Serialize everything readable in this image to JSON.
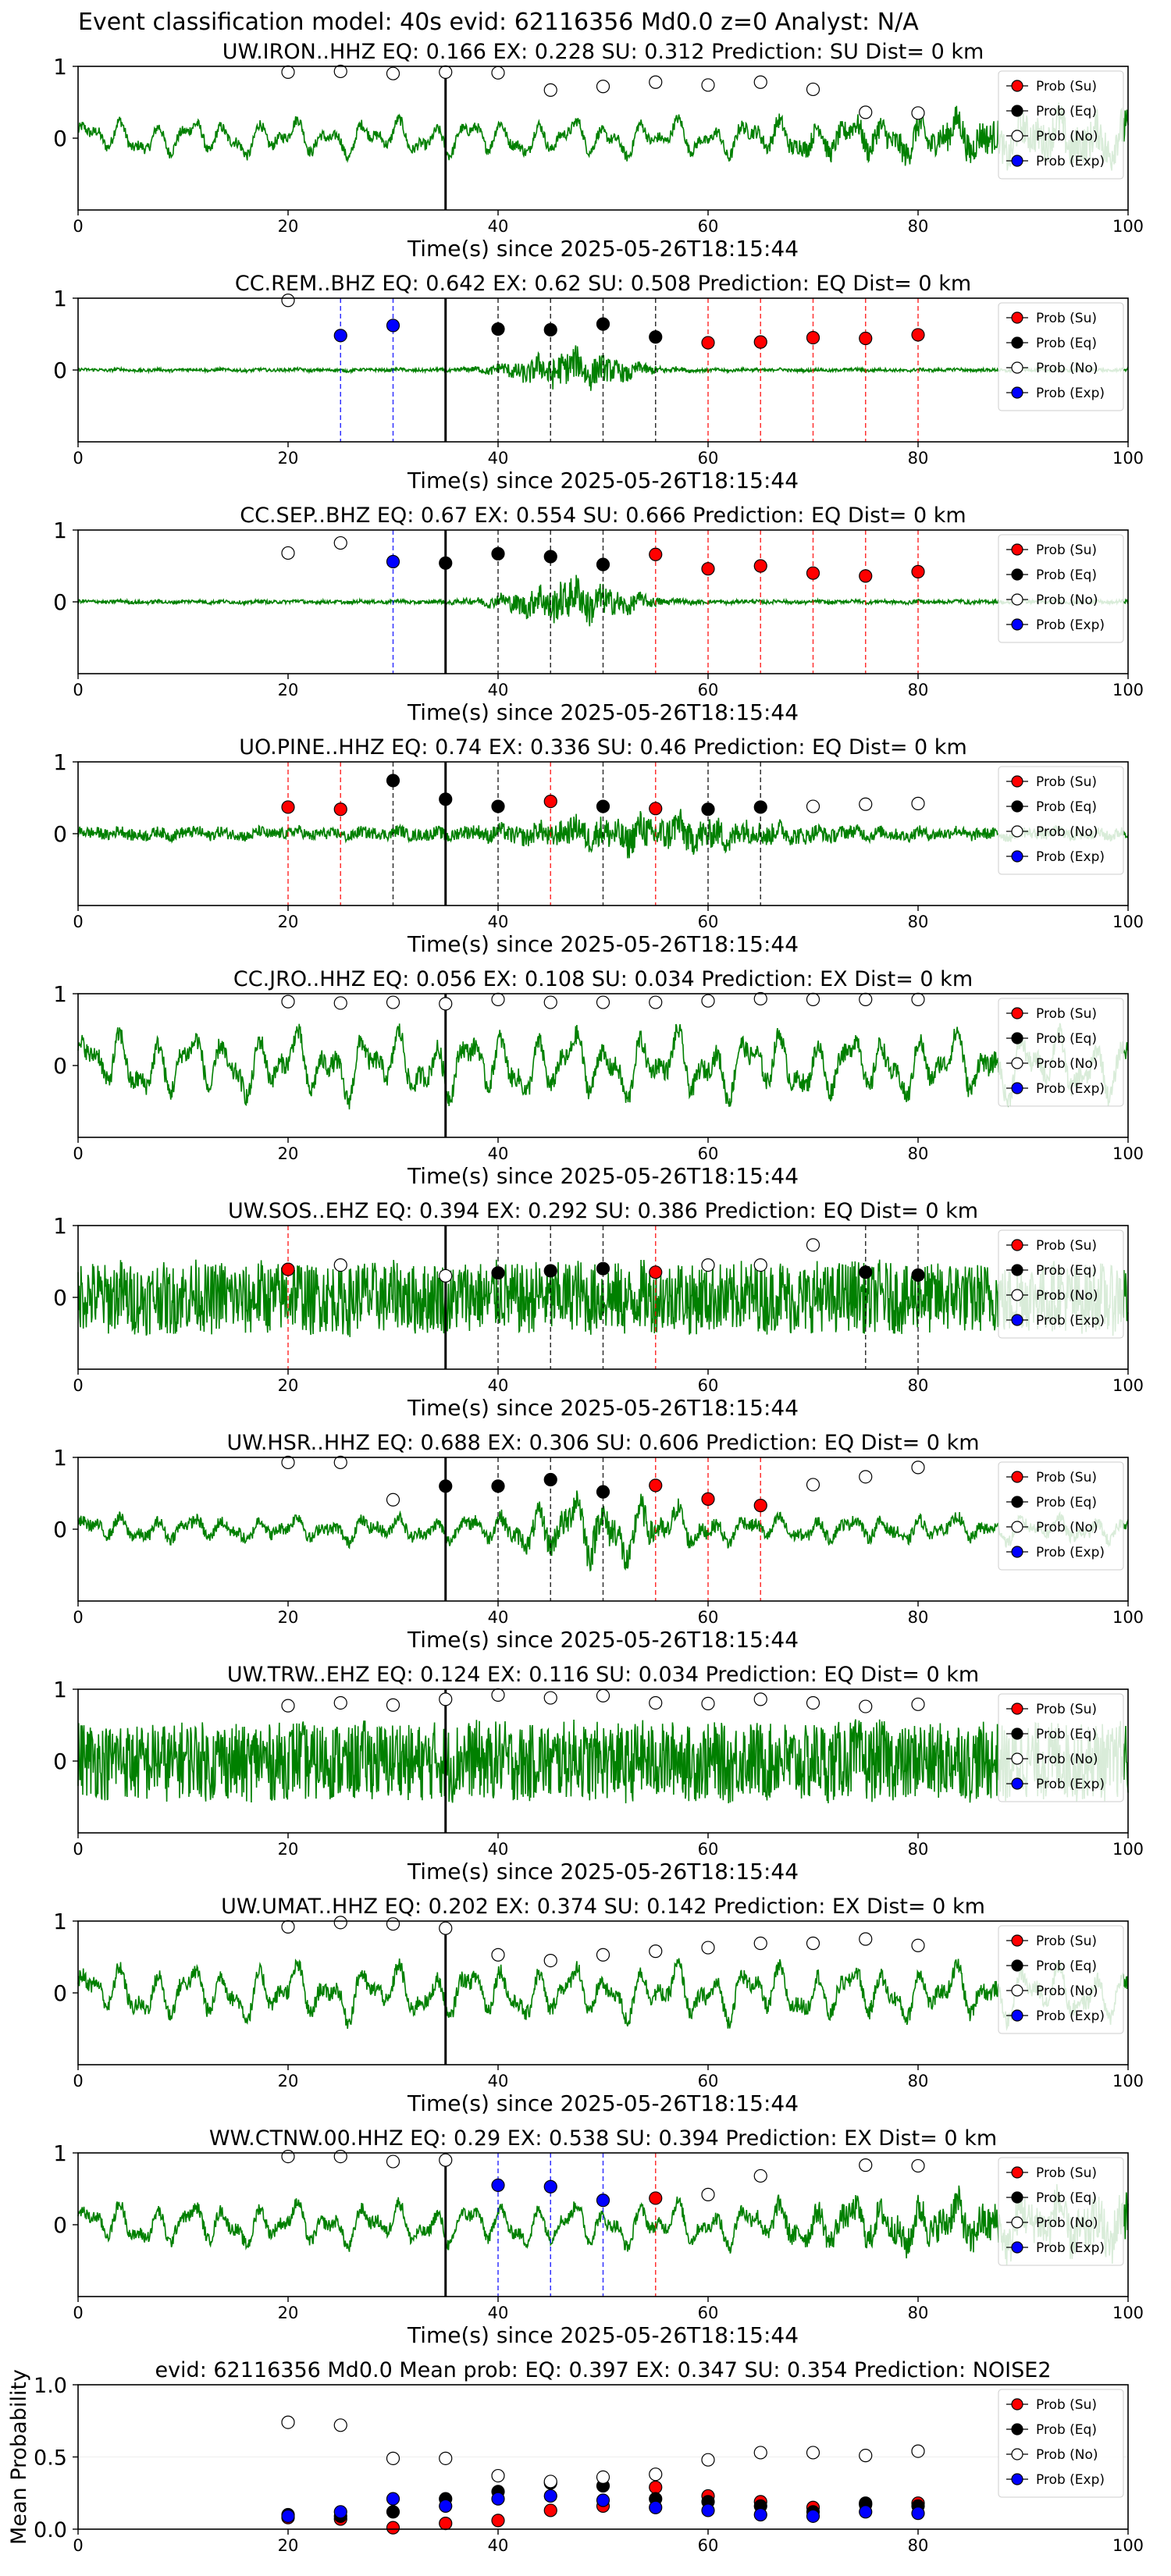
{
  "suptitle": "Event classification model: 40s evid: 62116356 Md0.0 z=0 Analyst: N/A",
  "colors": {
    "waveform": "#008000",
    "prob_su": "#ff0000",
    "prob_eq": "#000000",
    "prob_no": "#ffffff",
    "prob_exp": "#0000ff",
    "origin_line": "#000000"
  },
  "legend_labels": [
    "Prob (Su)",
    "Prob (Eq)",
    "Prob (No)",
    "Prob (Exp)"
  ],
  "chart_data": [
    {
      "type": "line",
      "title": "UW.IRON..HHZ   EQ: 0.166  EX: 0.228  SU: 0.312   Prediction: SU    Dist= 0 km",
      "xlabel": "Time(s) since 2025-05-26T18:15:44",
      "xlim": [
        0,
        100
      ],
      "ylim": [
        -1,
        1
      ],
      "xticks": [
        0,
        20,
        40,
        60,
        80,
        100
      ],
      "yticks": [
        0,
        1
      ],
      "origin_time": 35,
      "legend_position": "top-right",
      "waveform_amplitude": 0.38,
      "waveform_style": "lowfreq-rising",
      "points": [
        {
          "x": 20,
          "y": 0.92,
          "cls": "no"
        },
        {
          "x": 25,
          "y": 0.93,
          "cls": "no"
        },
        {
          "x": 30,
          "y": 0.9,
          "cls": "no"
        },
        {
          "x": 35,
          "y": 0.92,
          "cls": "no"
        },
        {
          "x": 40,
          "y": 0.91,
          "cls": "no"
        },
        {
          "x": 45,
          "y": 0.67,
          "cls": "no"
        },
        {
          "x": 50,
          "y": 0.72,
          "cls": "no"
        },
        {
          "x": 55,
          "y": 0.78,
          "cls": "no"
        },
        {
          "x": 60,
          "y": 0.74,
          "cls": "no"
        },
        {
          "x": 65,
          "y": 0.78,
          "cls": "no"
        },
        {
          "x": 70,
          "y": 0.68,
          "cls": "no"
        },
        {
          "x": 75,
          "y": 0.36,
          "cls": "no"
        },
        {
          "x": 80,
          "y": 0.35,
          "cls": "no"
        }
      ]
    },
    {
      "type": "line",
      "title": "CC.REM..BHZ   EQ: 0.642  EX: 0.62  SU: 0.508   Prediction: EQ    Dist= 0 km",
      "xlabel": "Time(s) since 2025-05-26T18:15:44",
      "xlim": [
        0,
        100
      ],
      "ylim": [
        -1,
        1
      ],
      "xticks": [
        0,
        20,
        40,
        60,
        80,
        100
      ],
      "yticks": [
        0,
        1
      ],
      "origin_time": 35,
      "legend_position": "top-right",
      "waveform_amplitude": 0.12,
      "waveform_style": "burst",
      "points": [
        {
          "x": 20,
          "y": 0.97,
          "cls": "no"
        },
        {
          "x": 25,
          "y": 0.48,
          "cls": "exp"
        },
        {
          "x": 30,
          "y": 0.62,
          "cls": "exp"
        },
        {
          "x": 40,
          "y": 0.57,
          "cls": "eq"
        },
        {
          "x": 45,
          "y": 0.56,
          "cls": "eq"
        },
        {
          "x": 50,
          "y": 0.64,
          "cls": "eq"
        },
        {
          "x": 55,
          "y": 0.46,
          "cls": "eq"
        },
        {
          "x": 60,
          "y": 0.38,
          "cls": "su"
        },
        {
          "x": 65,
          "y": 0.39,
          "cls": "su"
        },
        {
          "x": 70,
          "y": 0.45,
          "cls": "su"
        },
        {
          "x": 75,
          "y": 0.44,
          "cls": "su"
        },
        {
          "x": 80,
          "y": 0.49,
          "cls": "su"
        }
      ]
    },
    {
      "type": "line",
      "title": "CC.SEP..BHZ   EQ: 0.67  EX: 0.554  SU: 0.666   Prediction: EQ    Dist= 0 km",
      "xlabel": "Time(s) since 2025-05-26T18:15:44",
      "xlim": [
        0,
        100
      ],
      "ylim": [
        -1,
        1
      ],
      "xticks": [
        0,
        20,
        40,
        60,
        80,
        100
      ],
      "yticks": [
        0,
        1
      ],
      "origin_time": 35,
      "legend_position": "top-right",
      "waveform_amplitude": 0.14,
      "waveform_style": "burst",
      "points": [
        {
          "x": 20,
          "y": 0.68,
          "cls": "no"
        },
        {
          "x": 25,
          "y": 0.82,
          "cls": "no"
        },
        {
          "x": 30,
          "y": 0.56,
          "cls": "exp"
        },
        {
          "x": 35,
          "y": 0.54,
          "cls": "eq"
        },
        {
          "x": 40,
          "y": 0.67,
          "cls": "eq"
        },
        {
          "x": 45,
          "y": 0.63,
          "cls": "eq"
        },
        {
          "x": 50,
          "y": 0.52,
          "cls": "eq"
        },
        {
          "x": 55,
          "y": 0.66,
          "cls": "su"
        },
        {
          "x": 60,
          "y": 0.46,
          "cls": "su"
        },
        {
          "x": 65,
          "y": 0.5,
          "cls": "su"
        },
        {
          "x": 70,
          "y": 0.4,
          "cls": "su"
        },
        {
          "x": 75,
          "y": 0.36,
          "cls": "su"
        },
        {
          "x": 80,
          "y": 0.42,
          "cls": "su"
        }
      ]
    },
    {
      "type": "line",
      "title": "UO.PINE..HHZ   EQ: 0.74  EX: 0.336  SU: 0.46   Prediction: EQ    Dist= 0 km",
      "xlabel": "Time(s) since 2025-05-26T18:15:44",
      "xlim": [
        0,
        100
      ],
      "ylim": [
        -1,
        1
      ],
      "xticks": [
        0,
        20,
        40,
        60,
        80,
        100
      ],
      "yticks": [
        0,
        1
      ],
      "origin_time": 35,
      "legend_position": "top-right",
      "waveform_amplitude": 0.22,
      "waveform_style": "noisy-burst",
      "points": [
        {
          "x": 20,
          "y": 0.37,
          "cls": "su"
        },
        {
          "x": 25,
          "y": 0.34,
          "cls": "su"
        },
        {
          "x": 30,
          "y": 0.74,
          "cls": "eq"
        },
        {
          "x": 35,
          "y": 0.48,
          "cls": "eq"
        },
        {
          "x": 40,
          "y": 0.38,
          "cls": "eq"
        },
        {
          "x": 45,
          "y": 0.45,
          "cls": "su"
        },
        {
          "x": 50,
          "y": 0.38,
          "cls": "eq"
        },
        {
          "x": 55,
          "y": 0.35,
          "cls": "su"
        },
        {
          "x": 60,
          "y": 0.34,
          "cls": "eq"
        },
        {
          "x": 65,
          "y": 0.37,
          "cls": "eq"
        },
        {
          "x": 70,
          "y": 0.38,
          "cls": "no"
        },
        {
          "x": 75,
          "y": 0.41,
          "cls": "no"
        },
        {
          "x": 80,
          "y": 0.42,
          "cls": "no"
        }
      ]
    },
    {
      "type": "line",
      "title": "CC.JRO..HHZ   EQ: 0.056  EX: 0.108  SU: 0.034   Prediction: EX    Dist= 0 km",
      "xlabel": "Time(s) since 2025-05-26T18:15:44",
      "xlim": [
        0,
        100
      ],
      "ylim": [
        -1,
        1
      ],
      "xticks": [
        0,
        20,
        40,
        60,
        80,
        100
      ],
      "yticks": [
        0,
        1
      ],
      "origin_time": 35,
      "legend_position": "top-right",
      "waveform_amplitude": 0.55,
      "waveform_style": "lowfreq",
      "points": [
        {
          "x": 20,
          "y": 0.89,
          "cls": "no"
        },
        {
          "x": 25,
          "y": 0.87,
          "cls": "no"
        },
        {
          "x": 30,
          "y": 0.88,
          "cls": "no"
        },
        {
          "x": 35,
          "y": 0.86,
          "cls": "no"
        },
        {
          "x": 40,
          "y": 0.92,
          "cls": "no"
        },
        {
          "x": 45,
          "y": 0.88,
          "cls": "no"
        },
        {
          "x": 50,
          "y": 0.88,
          "cls": "no"
        },
        {
          "x": 55,
          "y": 0.88,
          "cls": "no"
        },
        {
          "x": 60,
          "y": 0.9,
          "cls": "no"
        },
        {
          "x": 65,
          "y": 0.93,
          "cls": "no"
        },
        {
          "x": 70,
          "y": 0.92,
          "cls": "no"
        },
        {
          "x": 75,
          "y": 0.92,
          "cls": "no"
        },
        {
          "x": 80,
          "y": 0.92,
          "cls": "no"
        }
      ]
    },
    {
      "type": "line",
      "title": "UW.SOS..EHZ   EQ: 0.394  EX: 0.292  SU: 0.386   Prediction: EQ    Dist= 0 km",
      "xlabel": "Time(s) since 2025-05-26T18:15:44",
      "xlim": [
        0,
        100
      ],
      "ylim": [
        -1,
        1
      ],
      "xticks": [
        0,
        20,
        40,
        60,
        80,
        100
      ],
      "yticks": [
        0,
        1
      ],
      "origin_time": 35,
      "legend_position": "top-right",
      "waveform_amplitude": 0.55,
      "waveform_style": "noise",
      "points": [
        {
          "x": 20,
          "y": 0.39,
          "cls": "su"
        },
        {
          "x": 25,
          "y": 0.45,
          "cls": "no"
        },
        {
          "x": 35,
          "y": 0.3,
          "cls": "no"
        },
        {
          "x": 40,
          "y": 0.34,
          "cls": "eq"
        },
        {
          "x": 45,
          "y": 0.37,
          "cls": "eq"
        },
        {
          "x": 50,
          "y": 0.4,
          "cls": "eq"
        },
        {
          "x": 55,
          "y": 0.35,
          "cls": "su"
        },
        {
          "x": 60,
          "y": 0.45,
          "cls": "no"
        },
        {
          "x": 65,
          "y": 0.45,
          "cls": "no"
        },
        {
          "x": 70,
          "y": 0.73,
          "cls": "no"
        },
        {
          "x": 75,
          "y": 0.35,
          "cls": "eq"
        },
        {
          "x": 80,
          "y": 0.31,
          "cls": "eq"
        }
      ]
    },
    {
      "type": "line",
      "title": "UW.HSR..HHZ   EQ: 0.688  EX: 0.306  SU: 0.606   Prediction: EQ    Dist= 0 km",
      "xlabel": "Time(s) since 2025-05-26T18:15:44",
      "xlim": [
        0,
        100
      ],
      "ylim": [
        -1,
        1
      ],
      "xticks": [
        0,
        20,
        40,
        60,
        80,
        100
      ],
      "yticks": [
        0,
        1
      ],
      "origin_time": 35,
      "legend_position": "top-right",
      "waveform_amplitude": 0.4,
      "waveform_style": "lowfreq-burst",
      "points": [
        {
          "x": 20,
          "y": 0.93,
          "cls": "no"
        },
        {
          "x": 25,
          "y": 0.93,
          "cls": "no"
        },
        {
          "x": 30,
          "y": 0.41,
          "cls": "no"
        },
        {
          "x": 35,
          "y": 0.6,
          "cls": "eq"
        },
        {
          "x": 40,
          "y": 0.6,
          "cls": "eq"
        },
        {
          "x": 45,
          "y": 0.69,
          "cls": "eq"
        },
        {
          "x": 50,
          "y": 0.52,
          "cls": "eq"
        },
        {
          "x": 55,
          "y": 0.61,
          "cls": "su"
        },
        {
          "x": 60,
          "y": 0.42,
          "cls": "su"
        },
        {
          "x": 65,
          "y": 0.33,
          "cls": "su"
        },
        {
          "x": 70,
          "y": 0.62,
          "cls": "no"
        },
        {
          "x": 75,
          "y": 0.73,
          "cls": "no"
        },
        {
          "x": 80,
          "y": 0.86,
          "cls": "no"
        }
      ]
    },
    {
      "type": "line",
      "title": "UW.TRW..EHZ   EQ: 0.124  EX: 0.116  SU: 0.034   Prediction: EQ    Dist= 0 km",
      "xlabel": "Time(s) since 2025-05-26T18:15:44",
      "xlim": [
        0,
        100
      ],
      "ylim": [
        -1,
        1
      ],
      "xticks": [
        0,
        20,
        40,
        60,
        80,
        100
      ],
      "yticks": [
        0,
        1
      ],
      "origin_time": 35,
      "legend_position": "top-right",
      "waveform_amplitude": 0.6,
      "waveform_style": "noise",
      "points": [
        {
          "x": 20,
          "y": 0.77,
          "cls": "no"
        },
        {
          "x": 25,
          "y": 0.81,
          "cls": "no"
        },
        {
          "x": 30,
          "y": 0.78,
          "cls": "no"
        },
        {
          "x": 35,
          "y": 0.86,
          "cls": "no"
        },
        {
          "x": 40,
          "y": 0.92,
          "cls": "no"
        },
        {
          "x": 45,
          "y": 0.88,
          "cls": "no"
        },
        {
          "x": 50,
          "y": 0.91,
          "cls": "no"
        },
        {
          "x": 55,
          "y": 0.81,
          "cls": "no"
        },
        {
          "x": 60,
          "y": 0.8,
          "cls": "no"
        },
        {
          "x": 65,
          "y": 0.86,
          "cls": "no"
        },
        {
          "x": 70,
          "y": 0.81,
          "cls": "no"
        },
        {
          "x": 75,
          "y": 0.76,
          "cls": "no"
        },
        {
          "x": 80,
          "y": 0.79,
          "cls": "no"
        }
      ]
    },
    {
      "type": "line",
      "title": "UW.UMAT..HHZ   EQ: 0.202  EX: 0.374  SU: 0.142   Prediction: EX    Dist= 0 km",
      "xlabel": "Time(s) since 2025-05-26T18:15:44",
      "xlim": [
        0,
        100
      ],
      "ylim": [
        -1,
        1
      ],
      "xticks": [
        0,
        20,
        40,
        60,
        80,
        100
      ],
      "yticks": [
        0,
        1
      ],
      "origin_time": 35,
      "legend_position": "top-right",
      "waveform_amplitude": 0.45,
      "waveform_style": "lowfreq",
      "points": [
        {
          "x": 20,
          "y": 0.92,
          "cls": "no"
        },
        {
          "x": 25,
          "y": 0.98,
          "cls": "no"
        },
        {
          "x": 30,
          "y": 0.96,
          "cls": "no"
        },
        {
          "x": 35,
          "y": 0.9,
          "cls": "no"
        },
        {
          "x": 40,
          "y": 0.53,
          "cls": "no"
        },
        {
          "x": 45,
          "y": 0.45,
          "cls": "no"
        },
        {
          "x": 50,
          "y": 0.53,
          "cls": "no"
        },
        {
          "x": 55,
          "y": 0.58,
          "cls": "no"
        },
        {
          "x": 60,
          "y": 0.63,
          "cls": "no"
        },
        {
          "x": 65,
          "y": 0.69,
          "cls": "no"
        },
        {
          "x": 70,
          "y": 0.69,
          "cls": "no"
        },
        {
          "x": 75,
          "y": 0.75,
          "cls": "no"
        },
        {
          "x": 80,
          "y": 0.66,
          "cls": "no"
        }
      ]
    },
    {
      "type": "line",
      "title": "WW.CTNW.00.HHZ   EQ: 0.29  EX: 0.538  SU: 0.394   Prediction: EX    Dist= 0 km",
      "xlabel": "Time(s) since 2025-05-26T18:15:44",
      "xlim": [
        0,
        100
      ],
      "ylim": [
        -1,
        1
      ],
      "xticks": [
        0,
        20,
        40,
        60,
        80,
        100
      ],
      "yticks": [
        0,
        1
      ],
      "origin_time": 35,
      "legend_position": "top-right",
      "waveform_amplitude": 0.45,
      "waveform_style": "lowfreq-rising",
      "points": [
        {
          "x": 20,
          "y": 0.95,
          "cls": "no"
        },
        {
          "x": 25,
          "y": 0.95,
          "cls": "no"
        },
        {
          "x": 30,
          "y": 0.88,
          "cls": "no"
        },
        {
          "x": 35,
          "y": 0.9,
          "cls": "no"
        },
        {
          "x": 40,
          "y": 0.55,
          "cls": "exp"
        },
        {
          "x": 45,
          "y": 0.53,
          "cls": "exp"
        },
        {
          "x": 50,
          "y": 0.34,
          "cls": "exp"
        },
        {
          "x": 55,
          "y": 0.37,
          "cls": "su"
        },
        {
          "x": 60,
          "y": 0.42,
          "cls": "no"
        },
        {
          "x": 65,
          "y": 0.68,
          "cls": "no"
        },
        {
          "x": 75,
          "y": 0.83,
          "cls": "no"
        },
        {
          "x": 80,
          "y": 0.82,
          "cls": "no"
        }
      ]
    },
    {
      "type": "scatter",
      "title": "evid: 62116356   Md0.0   Mean prob:   EQ: 0.397  EX: 0.347  SU: 0.354   Prediction: NOISE2",
      "xlabel": "",
      "ylabel": "Mean Probability",
      "xlim": [
        0,
        100
      ],
      "ylim": [
        0,
        1
      ],
      "xticks": [
        0,
        20,
        40,
        60,
        80,
        100
      ],
      "yticks": [
        0.0,
        0.5,
        1.0
      ],
      "legend_position": "top-right",
      "x": [
        20,
        25,
        30,
        35,
        40,
        45,
        50,
        55,
        60,
        65,
        70,
        75,
        80
      ],
      "series": [
        {
          "name": "Prob (Su)",
          "cls": "su",
          "values": [
            0.08,
            0.07,
            0.01,
            0.04,
            0.06,
            0.13,
            0.16,
            0.29,
            0.23,
            0.19,
            0.15,
            0.17,
            0.18
          ]
        },
        {
          "name": "Prob (Eq)",
          "cls": "eq",
          "values": [
            0.1,
            0.09,
            0.12,
            0.21,
            0.26,
            0.32,
            0.3,
            0.21,
            0.19,
            0.16,
            0.12,
            0.18,
            0.16
          ]
        },
        {
          "name": "Prob (No)",
          "cls": "no",
          "values": [
            0.74,
            0.72,
            0.49,
            0.49,
            0.37,
            0.33,
            0.36,
            0.38,
            0.48,
            0.53,
            0.53,
            0.51,
            0.54
          ]
        },
        {
          "name": "Prob (Exp)",
          "cls": "exp",
          "values": [
            0.09,
            0.12,
            0.21,
            0.16,
            0.21,
            0.23,
            0.2,
            0.15,
            0.13,
            0.1,
            0.09,
            0.12,
            0.11
          ]
        }
      ]
    }
  ]
}
